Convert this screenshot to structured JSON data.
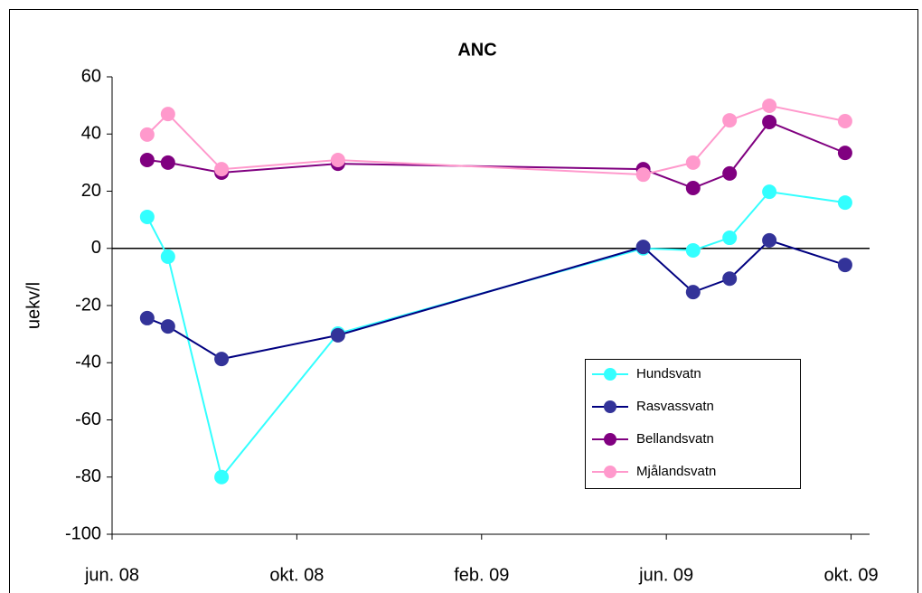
{
  "chart_data": {
    "type": "line",
    "title": "ANC",
    "ylabel": "uekv/l",
    "x": [
      0.76,
      1.21,
      2.37,
      4.89,
      11.5,
      12.58,
      13.37,
      14.23,
      15.87
    ],
    "xlim": [
      0,
      16.4
    ],
    "xticks": [
      {
        "value": 0,
        "label": "jun. 08"
      },
      {
        "value": 4,
        "label": "okt. 08"
      },
      {
        "value": 8,
        "label": "feb. 09"
      },
      {
        "value": 12,
        "label": "jun. 09"
      },
      {
        "value": 16,
        "label": "okt. 09"
      }
    ],
    "ylim": [
      -100,
      60
    ],
    "yticks": [
      -100,
      -80,
      -60,
      -40,
      -20,
      0,
      20,
      40,
      60
    ],
    "grid": false,
    "legend": "lower right",
    "series": [
      {
        "name": "Hundsvatn",
        "color": "#33ffff",
        "values": [
          11,
          -2.9,
          -80,
          -29.8,
          0,
          -0.7,
          3.7,
          19.8,
          16
        ]
      },
      {
        "name": "Rasvassvatn",
        "color": "#333399",
        "values": [
          -24.4,
          -27.3,
          -38.7,
          -30.4,
          0.5,
          -15.3,
          -10.6,
          2.8,
          -5.8
        ]
      },
      {
        "name": "Bellandsvatn",
        "color": "#800080",
        "values": [
          30.9,
          30,
          26.5,
          29.6,
          27.7,
          21.1,
          26.2,
          44.2,
          33.4
        ]
      },
      {
        "name": "Mjålandsvatn",
        "color": "#ff99cc",
        "values": [
          39.8,
          47,
          27.7,
          30.9,
          25.8,
          30,
          44.8,
          49.9,
          44.5
        ]
      }
    ]
  }
}
